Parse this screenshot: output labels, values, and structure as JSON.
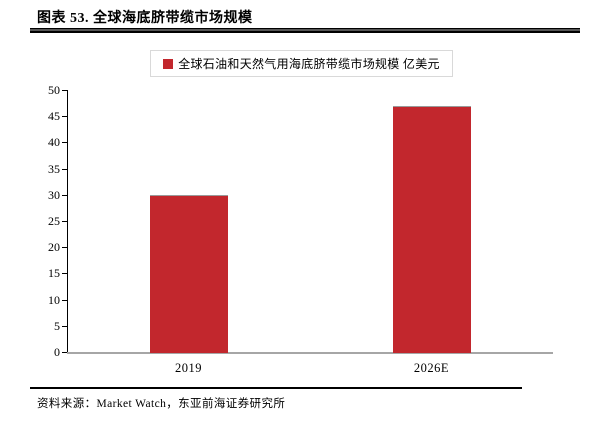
{
  "header": {
    "title": "图表 53. 全球海底脐带缆市场规模"
  },
  "legend": {
    "marker_color": "#c2272d",
    "label": "全球石油和天然气用海底脐带缆市场规模 亿美元"
  },
  "chart_data": {
    "type": "bar",
    "title": "全球海底脐带缆市场规模",
    "categories": [
      "2019",
      "2026E"
    ],
    "values": [
      30,
      47
    ],
    "series_name": "全球石油和天然气用海底脐带缆市场规模",
    "unit": "亿美元",
    "ylim": [
      0,
      50
    ],
    "ytick_step": 5,
    "yticks": [
      0,
      5,
      10,
      15,
      20,
      25,
      30,
      35,
      40,
      45,
      50
    ],
    "grid": false,
    "legend_position": "top-center",
    "bar_color": "#c2272d",
    "axis_color": "#000000",
    "baseline_color": "#a6a6a6"
  },
  "footer": {
    "source_label": "资料来源：Market Watch，东亚前海证券研究所"
  }
}
